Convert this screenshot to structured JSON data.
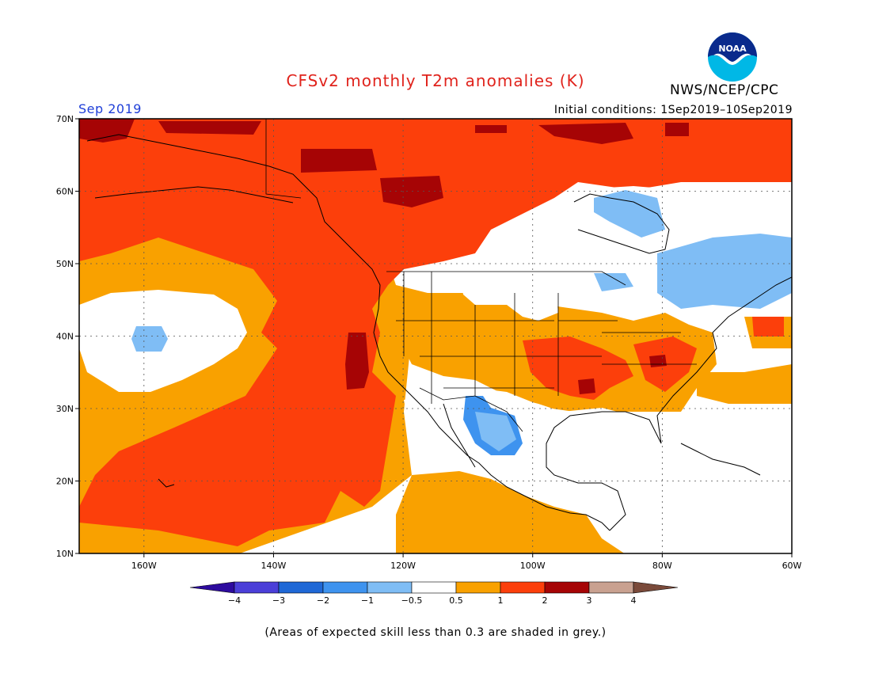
{
  "header": {
    "title": "CFSv2 monthly T2m anomalies (K)",
    "agency": "NWS/NCEP/CPC",
    "logo_text": "NOAA",
    "valid_month": "Sep 2019",
    "initial_conditions": "Initial conditions: 1Sep2019–10Sep2019"
  },
  "map": {
    "lat_labels": [
      "70N",
      "60N",
      "50N",
      "40N",
      "30N",
      "20N",
      "10N"
    ],
    "lon_labels": [
      "160W",
      "140W",
      "120W",
      "100W",
      "80W",
      "60W"
    ],
    "lat_values": [
      70,
      60,
      50,
      40,
      30,
      20,
      10
    ],
    "lon_values": [
      -160,
      -140,
      -120,
      -100,
      -80,
      -60
    ],
    "extent": {
      "lon_min": -170,
      "lon_max": -60,
      "lat_min": 10,
      "lat_max": 70
    },
    "ocean_color": "#ffffff",
    "coastline_color": "#000000",
    "anomaly_regions": [
      {
        "name": "north-pacific-warm",
        "level": "2"
      },
      {
        "name": "alaska-canada-warm",
        "level": "2"
      },
      {
        "name": "subtropical-pacific-mild",
        "level": "1"
      },
      {
        "name": "central-pacific-neutral",
        "level": "0"
      },
      {
        "name": "central-pacific-cool-spot",
        "level": "-1"
      },
      {
        "name": "west-coast-hot-spot",
        "level": "3"
      },
      {
        "name": "northern-canada-hot-spots",
        "level": "3"
      },
      {
        "name": "eastern-canada-cool",
        "level": "-1"
      },
      {
        "name": "atlantic-cool",
        "level": "-1"
      },
      {
        "name": "northwest-mexico-cool",
        "level": "-1"
      },
      {
        "name": "central-us-warm",
        "level": "2"
      },
      {
        "name": "southeast-us-warm",
        "level": "2"
      },
      {
        "name": "gulf-neutral",
        "level": "0"
      }
    ]
  },
  "legend": {
    "labels": [
      "−4",
      "−3",
      "−2",
      "−1",
      "−0.5",
      "0.5",
      "1",
      "2",
      "3",
      "4"
    ],
    "colors": [
      "#2d0b9e",
      "#4b3fd8",
      "#1f68d6",
      "#3e93ef",
      "#7fbdf5",
      "#ffffff",
      "#f9a100",
      "#fc3f0b",
      "#a60405",
      "#c9a190",
      "#7a4a3a"
    ]
  },
  "footnote": "(Areas of expected skill less than 0.3 are shaded in grey.)"
}
